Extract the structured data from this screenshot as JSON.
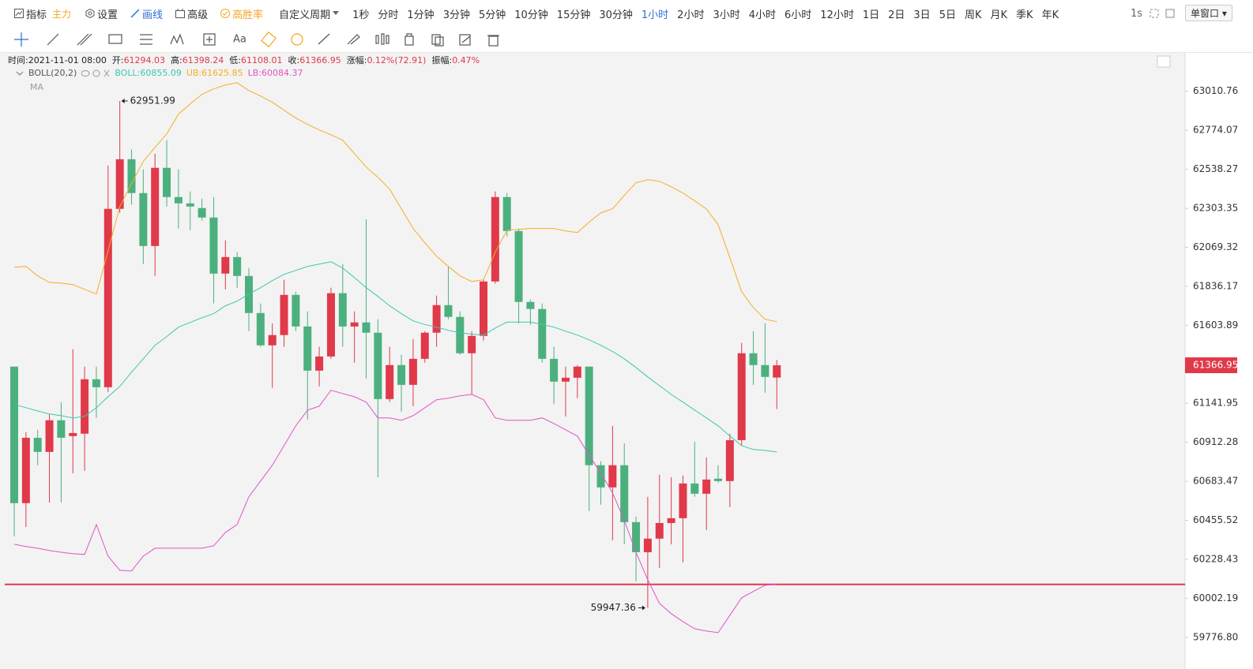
{
  "toolbar": {
    "indicator": "指标",
    "indicator_tag": "主力",
    "settings": "设置",
    "draw": "画线",
    "advanced": "高级",
    "win_rate": "高胜率",
    "custom_period": "自定义周期",
    "periods": [
      "1秒",
      "分时",
      "1分钟",
      "3分钟",
      "5分钟",
      "10分钟",
      "15分钟",
      "30分钟",
      "1小时",
      "2小时",
      "3小时",
      "4小时",
      "6小时",
      "12小时",
      "1日",
      "2日",
      "3日",
      "5日",
      "周K",
      "月K",
      "季K",
      "年K"
    ],
    "selected_period": 8,
    "refresh": "1s",
    "window": "单窗口",
    "text_tool": "Aa"
  },
  "info": {
    "time_label": "时间:",
    "time": "2021-11-01 08:00",
    "open_label": "开:",
    "high_label": "高:",
    "low_label": "低:",
    "close_label": "收:",
    "change_label": "涨幅:",
    "change": "0.12%(72.91)",
    "amplitude_label": "振幅:",
    "amplitude": "0.47%"
  },
  "chart_data": {
    "type": "candlestick",
    "log_scale": true,
    "grid": false,
    "up_color": "#e0394a",
    "down_color": "#4cb07e",
    "ylim": [
      59640,
      63240
    ],
    "yticks": [
      63010.76,
      62774.07,
      62538.27,
      62303.35,
      62069.32,
      61836.17,
      61603.89,
      61141.95,
      60912.28,
      60683.47,
      60455.52,
      60228.43,
      60002.19,
      {
        "value": 59776.8,
        "label": "59776.80"
      }
    ],
    "open": [
      61359,
      60556,
      60939,
      60856,
      61042,
      60949,
      60963,
      61284,
      61237,
      62300,
      62599,
      62395,
      62077,
      62547,
      62371,
      62333,
      62305,
      62248,
      61912,
      62011,
      61898,
      61677,
      61485,
      61546,
      61785,
      61597,
      61335,
      61419,
      61795,
      61597,
      61621,
      61560,
      61167,
      61368,
      61251,
      61405,
      61560,
      61724,
      61654,
      61438,
      61541,
      61865,
      62371,
      62167,
      61743,
      61701,
      61405,
      61270,
      61293,
      61359,
      60778,
      60648,
      60778,
      60445,
      60270,
      60349,
      60440,
      60468,
      60671,
      60611,
      60699,
      60685,
      60925,
      61438,
      61368,
      61294.03
    ],
    "high": [
      61359,
      60972,
      60986,
      61079,
      61149,
      61462,
      61359,
      61359,
      62561,
      62951.99,
      62657,
      62538,
      62633,
      62714,
      62538,
      62405,
      62362,
      62371,
      62111,
      62040,
      61945,
      61734,
      61616,
      61875,
      61804,
      61687,
      61476,
      61828,
      61969,
      61687,
      62238,
      61640,
      61476,
      61429,
      61522,
      61569,
      61781,
      61955,
      61687,
      61569,
      61875,
      62405,
      62395,
      62182,
      61757,
      61734,
      61476,
      61359,
      61368,
      61359,
      60801,
      61009,
      60907,
      60477,
      60593,
      60722,
      60708,
      60717,
      60916,
      60824,
      60778,
      60963,
      61499,
      61569,
      61616,
      61398.24
    ],
    "low": [
      60362,
      60417,
      60778,
      60560,
      60560,
      60731,
      60745,
      61056,
      61209,
      62276,
      62324,
      61969,
      61898,
      62314,
      62182,
      62172,
      62229,
      61734,
      61818,
      61828,
      61569,
      61476,
      61233,
      61476,
      61569,
      61046,
      61242,
      61405,
      61476,
      61382,
      61289,
      60708,
      61149,
      61093,
      61125,
      61382,
      61476,
      61640,
      61429,
      61195,
      61513,
      61851,
      62134,
      61616,
      61607,
      61382,
      61139,
      61065,
      61172,
      60510,
      60547,
      60339,
      60316,
      60101,
      59947.36,
      60179,
      60316,
      60211,
      60593,
      60399,
      60676,
      60533,
      60893,
      61251,
      61205,
      61108.01
    ],
    "close": [
      60556,
      60939,
      60856,
      61042,
      60939,
      60967,
      61284,
      61237,
      62300,
      62599,
      62395,
      62077,
      62547,
      62371,
      62333,
      62314,
      62248,
      61912,
      62011,
      61898,
      61677,
      61485,
      61546,
      61785,
      61597,
      61335,
      61419,
      61795,
      61597,
      61621,
      61560,
      61167,
      61368,
      61251,
      61405,
      61560,
      61724,
      61654,
      61438,
      61541,
      61865,
      62371,
      62167,
      61743,
      61701,
      61405,
      61270,
      61293,
      61359,
      60778,
      60648,
      60778,
      60445,
      60270,
      60349,
      60440,
      60468,
      60671,
      60611,
      60694,
      60685,
      60925,
      61438,
      61368,
      61298,
      61366.95
    ],
    "indicators": {
      "name": "BOLL(20,2)",
      "series": [
        {
          "name": "BOLL:",
          "color": "#3cc8ae",
          "values": [
            61135,
            61116,
            61097,
            61079,
            61069,
            61056,
            61065,
            61116,
            61181,
            61242,
            61326,
            61405,
            61485,
            61537,
            61593,
            61621,
            61649,
            61673,
            61720,
            61748,
            61790,
            61828,
            61870,
            61908,
            61931,
            61955,
            61969,
            61983,
            61945,
            61889,
            61828,
            61776,
            61720,
            61673,
            61630,
            61609,
            61593,
            61574,
            61560,
            61551,
            61546,
            61588,
            61623,
            61623,
            61623,
            61609,
            61593,
            61569,
            61546,
            61518,
            61485,
            61448,
            61405,
            61354,
            61298,
            61246,
            61195,
            61149,
            61102,
            61056,
            61009,
            60949,
            60893,
            60870,
            60865,
            60855.09
          ]
        },
        {
          "name": "UB:",
          "color": "#f5ae24",
          "values": [
            61950,
            61955,
            61898,
            61860,
            61855,
            61846,
            61818,
            61790,
            62049,
            62314,
            62452,
            62585,
            62671,
            62752,
            62872,
            62934,
            62992,
            63025,
            63049,
            63063,
            63015,
            62982,
            62944,
            62896,
            62848,
            62810,
            62776,
            62747,
            62714,
            62633,
            62552,
            62490,
            62419,
            62300,
            62182,
            62096,
            62016,
            61955,
            61898,
            61865,
            61875,
            62040,
            62172,
            62177,
            62182,
            62182,
            62182,
            62167,
            62158,
            62220,
            62276,
            62300,
            62381,
            62457,
            62476,
            62466,
            62433,
            62395,
            62348,
            62300,
            62205,
            62007,
            61804,
            61710,
            61640,
            61625.85
          ]
        },
        {
          "name": "LB:",
          "color": "#e254c7",
          "values": [
            60316,
            60303,
            60293,
            60280,
            60270,
            60261,
            60257,
            60431,
            60247,
            60165,
            60161,
            60247,
            60293,
            60293,
            60293,
            60293,
            60293,
            60307,
            60385,
            60431,
            60593,
            60685,
            60778,
            60893,
            61009,
            61102,
            61125,
            61219,
            61200,
            61181,
            61149,
            61056,
            61056,
            61042,
            61069,
            61116,
            61163,
            61172,
            61186,
            61195,
            61163,
            61056,
            61042,
            61042,
            61042,
            61056,
            61023,
            60986,
            60949,
            60838,
            60731,
            60616,
            60455,
            60270,
            60110,
            59973,
            59914,
            59868,
            59827,
            59813,
            59804,
            59905,
            60005,
            60042,
            60078,
            60084.37
          ]
        }
      ]
    },
    "ma_label": "MA",
    "hline": {
      "value": 60083,
      "color": "#e0394a"
    }
  }
}
